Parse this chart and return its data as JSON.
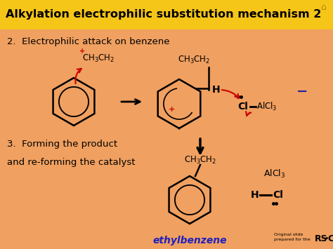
{
  "title": "Alkylation electrophilic substitution mechanism 2",
  "title_bg": "#F5C518",
  "body_bg": "#F0A060",
  "title_color": "#000000",
  "black": "#000000",
  "red": "#CC0000",
  "blue": "#2222AA",
  "ethylbenzene_color": "#2222BB",
  "step2_text": "2.  Electrophilic attack on benzene",
  "step3_text": "3.  Forming the product",
  "step3b_text": "and re-forming the catalyst",
  "ethylbenzene_label": "ethylbenzene",
  "font_size_title": 11.5,
  "font_size_body": 9.5,
  "font_size_chem": 8.5
}
